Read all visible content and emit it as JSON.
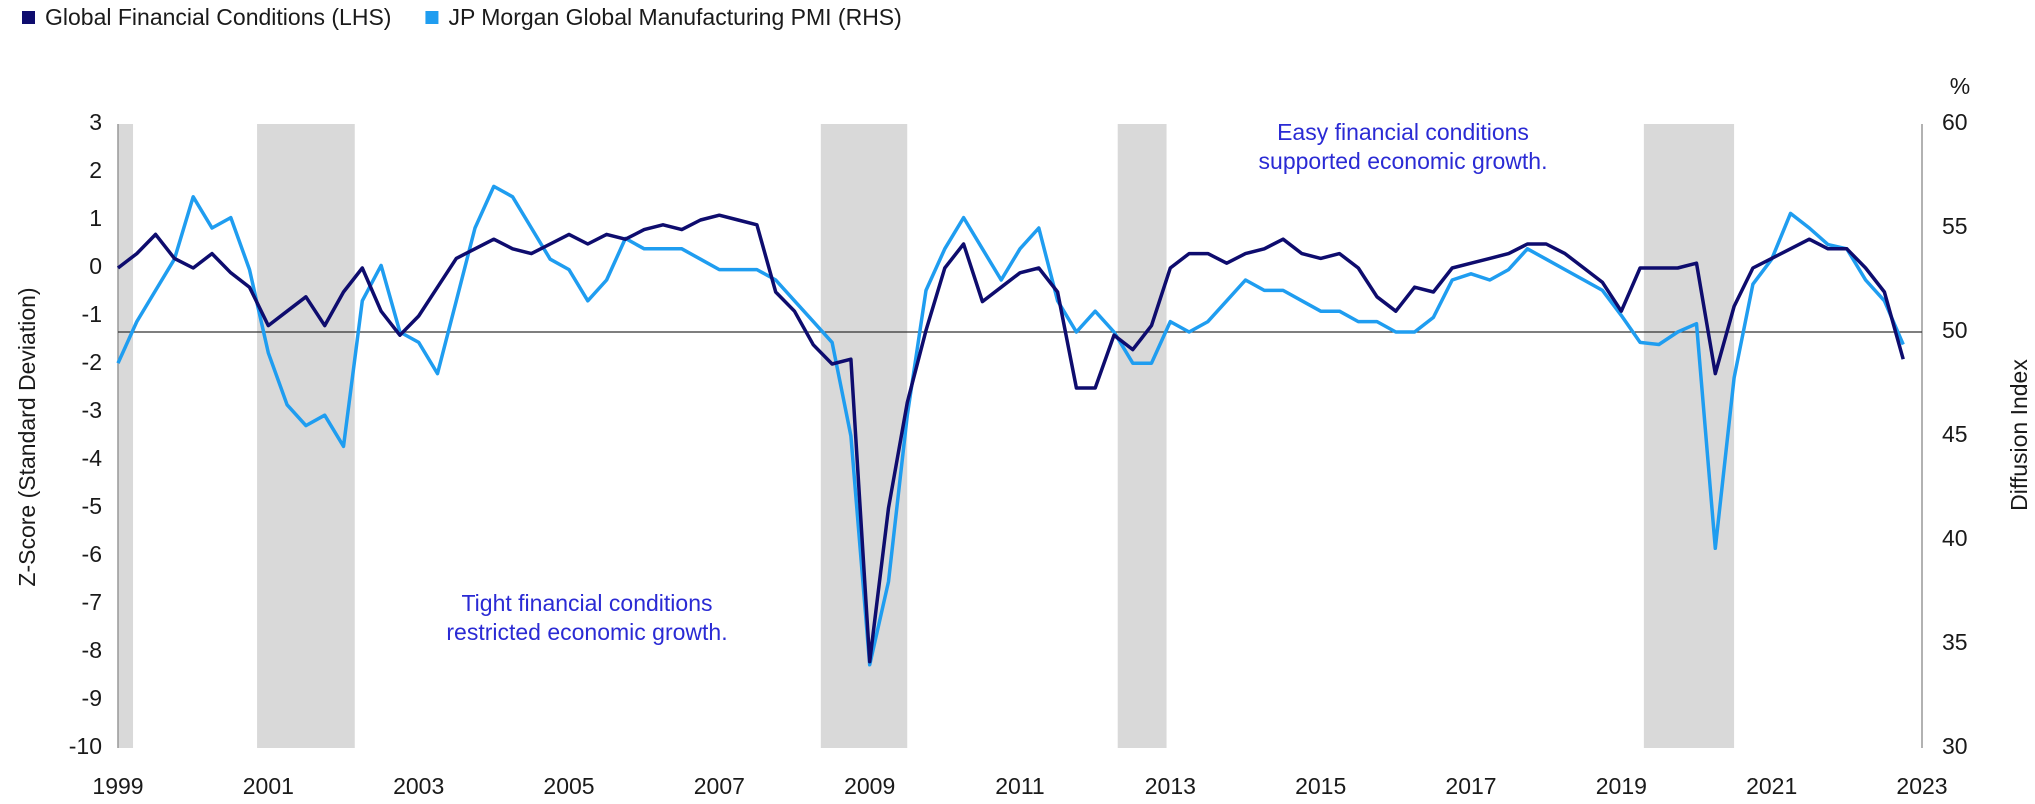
{
  "chart_data": {
    "type": "line",
    "y_label": "Z-Score (Standard Deviation)",
    "y2_label": "Diffusion Index",
    "y2_unit": "%",
    "annotations": [
      [
        "Easy financial conditions",
        "supported economic growth."
      ],
      [
        "Tight financial conditions",
        "restricted economic growth."
      ]
    ],
    "xlim": [
      1999,
      2023
    ],
    "xticks": [
      1999,
      2001,
      2003,
      2005,
      2007,
      2009,
      2011,
      2013,
      2015,
      2017,
      2019,
      2021,
      2023
    ],
    "ylim": [
      -10,
      3
    ],
    "yticks": [
      3,
      2,
      1,
      0,
      -1,
      -2,
      -3,
      -4,
      -5,
      -6,
      -7,
      -8,
      -9,
      -10
    ],
    "y2lim": [
      30,
      60
    ],
    "y2ticks": [
      30,
      35,
      40,
      45,
      50,
      55,
      60
    ],
    "reference_line_y2": 50,
    "shaded_periods": [
      [
        1999,
        1999.2
      ],
      [
        2000.85,
        2002.15
      ],
      [
        2008.35,
        2009.5
      ],
      [
        2012.3,
        2012.95
      ],
      [
        2019.3,
        2020.5
      ]
    ],
    "shade_color": "#d9d9d9",
    "x": [
      1999,
      1999.25,
      1999.5,
      1999.75,
      2000,
      2000.25,
      2000.5,
      2000.75,
      2001,
      2001.25,
      2001.5,
      2001.75,
      2002,
      2002.25,
      2002.5,
      2002.75,
      2003,
      2003.25,
      2003.5,
      2003.75,
      2004,
      2004.25,
      2004.5,
      2004.75,
      2005,
      2005.25,
      2005.5,
      2005.75,
      2006,
      2006.25,
      2006.5,
      2006.75,
      2007,
      2007.25,
      2007.5,
      2007.75,
      2008,
      2008.25,
      2008.5,
      2008.75,
      2009,
      2009.25,
      2009.5,
      2009.75,
      2010,
      2010.25,
      2010.5,
      2010.75,
      2011,
      2011.25,
      2011.5,
      2011.75,
      2012,
      2012.25,
      2012.5,
      2012.75,
      2013,
      2013.25,
      2013.5,
      2013.75,
      2014,
      2014.25,
      2014.5,
      2014.75,
      2015,
      2015.25,
      2015.5,
      2015.75,
      2016,
      2016.25,
      2016.5,
      2016.75,
      2017,
      2017.25,
      2017.5,
      2017.75,
      2018,
      2018.25,
      2018.5,
      2018.75,
      2019,
      2019.25,
      2019.5,
      2019.75,
      2020,
      2020.25,
      2020.5,
      2020.75,
      2021,
      2021.25,
      2021.5,
      2021.75,
      2022,
      2022.25,
      2022.5,
      2022.75
    ],
    "series": [
      {
        "name": "Global Financial Conditions (LHS)",
        "color": "#0e0c6e",
        "values": [
          0.0,
          0.3,
          0.7,
          0.2,
          0.0,
          0.3,
          -0.1,
          -0.4,
          -1.2,
          -0.9,
          -0.6,
          -1.2,
          -0.5,
          0.0,
          -0.9,
          -1.4,
          -1.0,
          -0.4,
          0.2,
          0.4,
          0.6,
          0.4,
          0.3,
          0.5,
          0.7,
          0.5,
          0.7,
          0.6,
          0.8,
          0.9,
          0.8,
          1.0,
          1.1,
          1.0,
          0.9,
          -0.5,
          -0.9,
          -1.6,
          -2.0,
          -1.9,
          -8.2,
          -5.0,
          -2.8,
          -1.3,
          0.0,
          0.5,
          -0.7,
          -0.4,
          -0.1,
          0.0,
          -0.5,
          -2.5,
          -2.5,
          -1.4,
          -1.7,
          -1.2,
          0.0,
          0.3,
          0.3,
          0.1,
          0.3,
          0.4,
          0.6,
          0.3,
          0.2,
          0.3,
          0.0,
          -0.6,
          -0.9,
          -0.4,
          -0.5,
          0.0,
          0.1,
          0.2,
          0.3,
          0.5,
          0.5,
          0.3,
          0.0,
          -0.3,
          -0.9,
          0.0,
          0.0,
          0.0,
          0.1,
          -2.2,
          -0.8,
          0.0,
          0.2,
          0.4,
          0.6,
          0.4,
          0.4,
          0.0,
          -0.5,
          -1.9
        ]
      },
      {
        "name": "JP Morgan Global Manufacturing PMI (RHS)",
        "color": "#1f9df0",
        "axis": "y2",
        "values": [
          48.5,
          50.5,
          52,
          53.5,
          56.5,
          55,
          55.5,
          53,
          49,
          46.5,
          45.5,
          46,
          44.5,
          51.5,
          53.2,
          50,
          49.5,
          48,
          51.5,
          55,
          57,
          56.5,
          55,
          53.5,
          53,
          51.5,
          52.5,
          54.5,
          54,
          54,
          54,
          53.5,
          53,
          53,
          53,
          52.5,
          51.5,
          50.5,
          49.5,
          45,
          34,
          38,
          46,
          52,
          54,
          55.5,
          54,
          52.5,
          54,
          55,
          51.5,
          50,
          51,
          50,
          48.5,
          48.5,
          50.5,
          50,
          50.5,
          51.5,
          52.5,
          52,
          52,
          51.5,
          51,
          51,
          50.5,
          50.5,
          50,
          50,
          50.7,
          52.5,
          52.8,
          52.5,
          53,
          54,
          53.5,
          53,
          52.5,
          52,
          50.8,
          49.5,
          49.4,
          50,
          50.4,
          39.6,
          47.8,
          52.3,
          53.5,
          55.7,
          55,
          54.2,
          54,
          52.5,
          51.5,
          49.4
        ]
      }
    ]
  }
}
